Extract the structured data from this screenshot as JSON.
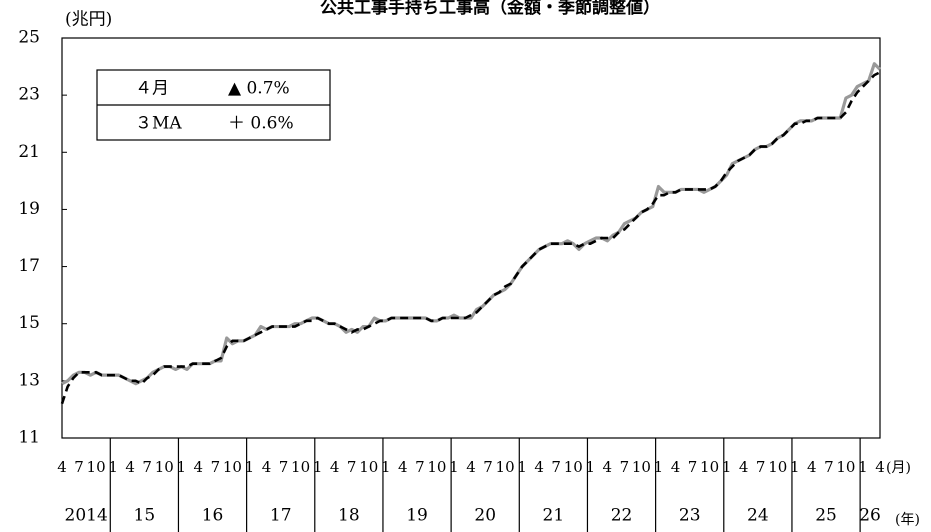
{
  "chart_data": {
    "type": "line",
    "title": "公共工事手持ち工事高（金額・季節調整値）",
    "y_label": "(兆円)",
    "x_label_month": "(月)",
    "x_label_year": "(年)",
    "legend_box": [
      [
        "４月",
        "▲ 0.7%"
      ],
      [
        "３MA",
        "＋ 0.6%"
      ]
    ],
    "categories": [
      "4",
      null,
      null,
      "7",
      null,
      null,
      "10",
      null,
      null,
      "1",
      null,
      null,
      "4",
      null,
      null,
      "7",
      null,
      null,
      "10",
      null,
      null,
      "1",
      null,
      null,
      "4",
      null,
      null,
      "7",
      null,
      null,
      "10",
      null,
      null,
      "1",
      null,
      null,
      "4",
      null,
      null,
      "7",
      null,
      null,
      "10",
      null,
      null,
      "1",
      null,
      null,
      "4",
      null,
      null,
      "7",
      null,
      null,
      "10",
      null,
      null,
      "1",
      null,
      null,
      "4",
      null,
      null,
      "7",
      null,
      null,
      "10",
      null,
      null,
      "1",
      null,
      null,
      "4",
      null,
      null,
      "7",
      null,
      null,
      "10",
      null,
      null,
      "1",
      null,
      null,
      "4",
      null,
      null,
      "7",
      null,
      null,
      "10",
      null,
      null,
      "1",
      null,
      null,
      "4",
      null,
      null,
      "7",
      null,
      null,
      "10",
      null,
      null,
      "1",
      null,
      null,
      "4",
      null,
      null,
      "7",
      null,
      null,
      "10",
      null,
      null,
      "1",
      null,
      null,
      "4",
      null,
      null,
      "7",
      null,
      null,
      "10",
      null,
      null,
      "1",
      null,
      null,
      "4",
      null,
      null,
      "7",
      null,
      null,
      "10",
      null,
      null,
      "1",
      null,
      null,
      "4"
    ],
    "year_labels": [
      "2014",
      "15",
      "16",
      "17",
      "18",
      "19",
      "20",
      "21",
      "22",
      "23",
      "24",
      "25",
      "26"
    ],
    "series": [
      {
        "color": "#999999",
        "dash": false,
        "values": [
          12.9,
          13.0,
          13.2,
          13.3,
          13.3,
          13.2,
          13.3,
          13.2,
          13.2,
          13.2,
          13.2,
          13.1,
          13.0,
          12.9,
          13.0,
          13.1,
          13.3,
          13.4,
          13.5,
          13.5,
          13.4,
          13.5,
          13.4,
          13.6,
          13.6,
          13.6,
          13.6,
          13.7,
          13.7,
          14.5,
          14.3,
          14.4,
          14.4,
          14.5,
          14.6,
          14.9,
          14.8,
          14.9,
          14.9,
          14.9,
          14.9,
          15.0,
          15.0,
          15.1,
          15.2,
          15.2,
          15.1,
          15.0,
          15.0,
          14.9,
          14.7,
          14.8,
          14.7,
          14.9,
          14.9,
          15.2,
          15.1,
          15.1,
          15.2,
          15.2,
          15.2,
          15.2,
          15.2,
          15.2,
          15.2,
          15.1,
          15.1,
          15.2,
          15.2,
          15.3,
          15.2,
          15.2,
          15.2,
          15.5,
          15.6,
          15.8,
          16.0,
          16.1,
          16.2,
          16.4,
          16.7,
          17.0,
          17.2,
          17.4,
          17.6,
          17.7,
          17.8,
          17.8,
          17.8,
          17.9,
          17.8,
          17.6,
          17.8,
          17.9,
          18.0,
          18.0,
          17.9,
          18.1,
          18.2,
          18.5,
          18.6,
          18.7,
          18.9,
          19.0,
          19.1,
          19.8,
          19.6,
          19.6,
          19.6,
          19.7,
          19.7,
          19.7,
          19.7,
          19.6,
          19.7,
          19.8,
          20.0,
          20.2,
          20.6,
          20.7,
          20.8,
          20.9,
          21.1,
          21.2,
          21.2,
          21.3,
          21.5,
          21.6,
          21.8,
          22.0,
          22.1,
          22.1,
          22.1,
          22.2,
          22.2,
          22.2,
          22.2,
          22.2,
          22.9,
          23.0,
          23.3,
          23.4,
          23.5,
          24.1,
          23.9
        ]
      },
      {
        "color": "#000000",
        "dash": true,
        "values": [
          12.2,
          12.8,
          13.1,
          13.3,
          13.3,
          13.3,
          13.3,
          13.2,
          13.2,
          13.2,
          13.2,
          13.1,
          13.0,
          13.0,
          12.9,
          13.1,
          13.2,
          13.4,
          13.5,
          13.5,
          13.5,
          13.5,
          13.5,
          13.6,
          13.6,
          13.6,
          13.6,
          13.7,
          13.8,
          14.2,
          14.4,
          14.4,
          14.4,
          14.5,
          14.6,
          14.7,
          14.8,
          14.9,
          14.9,
          14.9,
          14.9,
          14.9,
          15.0,
          15.1,
          15.1,
          15.2,
          15.1,
          15.0,
          15.0,
          14.9,
          14.8,
          14.7,
          14.8,
          14.8,
          14.9,
          15.0,
          15.1,
          15.1,
          15.2,
          15.2,
          15.2,
          15.2,
          15.2,
          15.2,
          15.2,
          15.1,
          15.1,
          15.2,
          15.2,
          15.2,
          15.2,
          15.2,
          15.3,
          15.4,
          15.6,
          15.8,
          16.0,
          16.1,
          16.3,
          16.4,
          16.7,
          17.0,
          17.2,
          17.4,
          17.6,
          17.7,
          17.8,
          17.8,
          17.8,
          17.8,
          17.8,
          17.7,
          17.8,
          17.8,
          17.9,
          18.0,
          18.0,
          18.0,
          18.2,
          18.3,
          18.5,
          18.7,
          18.9,
          19.0,
          19.2,
          19.5,
          19.5,
          19.6,
          19.6,
          19.7,
          19.7,
          19.7,
          19.7,
          19.7,
          19.7,
          19.8,
          20.0,
          20.3,
          20.5,
          20.7,
          20.8,
          20.9,
          21.1,
          21.2,
          21.2,
          21.3,
          21.5,
          21.6,
          21.8,
          22.0,
          22.0,
          22.1,
          22.1,
          22.2,
          22.2,
          22.2,
          22.2,
          22.2,
          22.4,
          22.8,
          23.1,
          23.3,
          23.5,
          23.7,
          23.8
        ]
      }
    ],
    "ylim": [
      11,
      25
    ],
    "yticks": [
      11,
      13,
      15,
      17,
      19,
      21,
      23,
      25
    ],
    "grid": false
  }
}
